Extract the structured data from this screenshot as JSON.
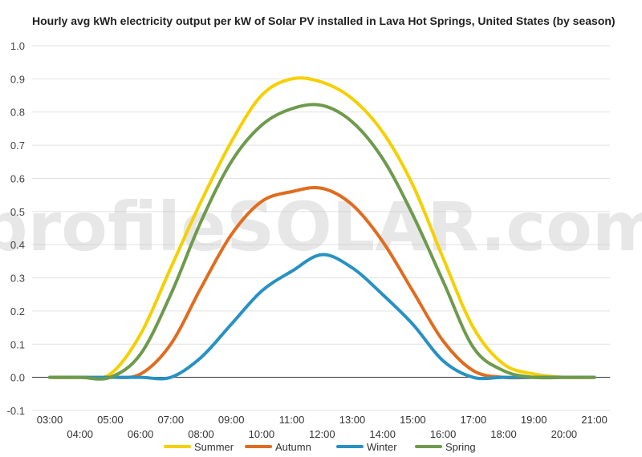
{
  "chart_data": {
    "type": "line",
    "title": "Hourly avg kWh electricity output per kW of Solar PV installed in Lava Hot Springs, United States (by season)",
    "xlabel": "",
    "ylabel": "",
    "x": [
      "03:00",
      "04:00",
      "05:00",
      "06:00",
      "07:00",
      "08:00",
      "09:00",
      "10:00",
      "11:00",
      "12:00",
      "13:00",
      "14:00",
      "15:00",
      "16:00",
      "17:00",
      "18:00",
      "19:00",
      "20:00",
      "21:00"
    ],
    "ylim": [
      -0.1,
      1.0
    ],
    "yticks": [
      "1.0",
      "0.9",
      "0.8",
      "0.7",
      "0.6",
      "0.5",
      "0.4",
      "0.3",
      "0.2",
      "0.1",
      "0.0",
      "-0.1"
    ],
    "grid": true,
    "legend_position": "bottom",
    "series": [
      {
        "name": "Summer",
        "color": "#f5d000",
        "values": [
          0,
          0,
          0.01,
          0.13,
          0.33,
          0.53,
          0.71,
          0.85,
          0.9,
          0.89,
          0.84,
          0.74,
          0.58,
          0.36,
          0.15,
          0.04,
          0.01,
          0,
          0
        ]
      },
      {
        "name": "Autumn",
        "color": "#e06c1f",
        "values": [
          0,
          0,
          0,
          0.01,
          0.1,
          0.27,
          0.43,
          0.53,
          0.56,
          0.57,
          0.52,
          0.41,
          0.26,
          0.11,
          0.02,
          0,
          0,
          0,
          0
        ]
      },
      {
        "name": "Winter",
        "color": "#2891c3",
        "values": [
          0,
          0,
          0,
          0,
          0,
          0.06,
          0.16,
          0.26,
          0.32,
          0.37,
          0.33,
          0.25,
          0.16,
          0.05,
          0,
          0,
          0,
          0,
          0
        ]
      },
      {
        "name": "Spring",
        "color": "#6e9a4c",
        "values": [
          0,
          0,
          0,
          0.07,
          0.25,
          0.47,
          0.65,
          0.76,
          0.81,
          0.82,
          0.77,
          0.66,
          0.49,
          0.29,
          0.09,
          0.02,
          0,
          0,
          0
        ]
      }
    ]
  },
  "watermark": {
    "text": "profileSOLAR.com"
  }
}
